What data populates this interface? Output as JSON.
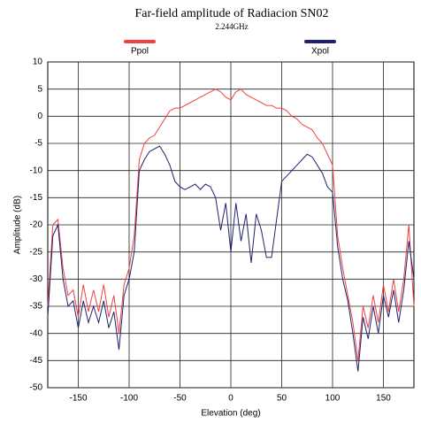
{
  "chart_data": {
    "type": "line",
    "title": "Far-field amplitude of Radiacion SN02",
    "subtitle": "2.244GHz",
    "xlabel": "Elevation (deg)",
    "ylabel": "Amplitude (dB)",
    "x": [
      -180,
      -175,
      -170,
      -165,
      -160,
      -155,
      -150,
      -145,
      -140,
      -135,
      -130,
      -125,
      -120,
      -115,
      -110,
      -105,
      -100,
      -95,
      -90,
      -85,
      -80,
      -75,
      -70,
      -65,
      -60,
      -55,
      -50,
      -45,
      -40,
      -35,
      -30,
      -25,
      -20,
      -15,
      -10,
      -5,
      0,
      5,
      10,
      15,
      20,
      25,
      30,
      35,
      40,
      45,
      50,
      55,
      60,
      65,
      70,
      75,
      80,
      85,
      90,
      95,
      100,
      105,
      110,
      115,
      120,
      125,
      130,
      135,
      140,
      145,
      150,
      155,
      160,
      165,
      170,
      175,
      180
    ],
    "series": [
      {
        "name": "Ppol",
        "color": "#f04040",
        "values": [
          -35,
          -20,
          -19,
          -28,
          -33,
          -32,
          -37,
          -31,
          -36,
          -32,
          -36,
          -31,
          -37,
          -33,
          -40,
          -31,
          -28,
          -22,
          -8,
          -5,
          -4,
          -3.5,
          -2,
          -0.5,
          1,
          1.5,
          1.5,
          2,
          2.5,
          3,
          3.5,
          4,
          4.5,
          5,
          4.5,
          3.5,
          3,
          4.5,
          5,
          4,
          3.5,
          3,
          2.5,
          2,
          2,
          1.5,
          1.5,
          1,
          0,
          -0.5,
          -1.5,
          -2,
          -2.5,
          -4,
          -5,
          -7,
          -9,
          -22,
          -28,
          -33,
          -38,
          -45,
          -35,
          -39,
          -33,
          -38,
          -31,
          -36,
          -30,
          -36,
          -30,
          -20,
          -35
        ]
      },
      {
        "name": "Xpol",
        "color": "#202070",
        "values": [
          -37,
          -22,
          -20,
          -30,
          -35,
          -34,
          -39,
          -34,
          -38,
          -35,
          -38,
          -34,
          -39,
          -36,
          -43,
          -33,
          -30,
          -25,
          -10,
          -8,
          -6.5,
          -6,
          -5.5,
          -7,
          -9,
          -12,
          -13,
          -13.5,
          -13,
          -12.5,
          -13.5,
          -12.5,
          -13,
          -15,
          -21,
          -16,
          -25,
          -16,
          -23,
          -18,
          -27,
          -18,
          -21,
          -26,
          -26,
          -19,
          -12,
          -11,
          -10,
          -9,
          -8,
          -7,
          -7.5,
          -9,
          -10.5,
          -13,
          -14,
          -24,
          -30,
          -34,
          -40,
          -47,
          -37,
          -41,
          -35,
          -40,
          -33,
          -37,
          -32,
          -38,
          -32,
          -23,
          -30
        ]
      }
    ],
    "xlim": [
      -180,
      180
    ],
    "xticks": [
      -150,
      -100,
      -50,
      0,
      50,
      100,
      150
    ],
    "ylim": [
      -50,
      10
    ],
    "yticks": [
      -50,
      -45,
      -40,
      -35,
      -30,
      -25,
      -20,
      -15,
      -10,
      -5,
      0,
      5,
      10
    ],
    "grid": true
  }
}
